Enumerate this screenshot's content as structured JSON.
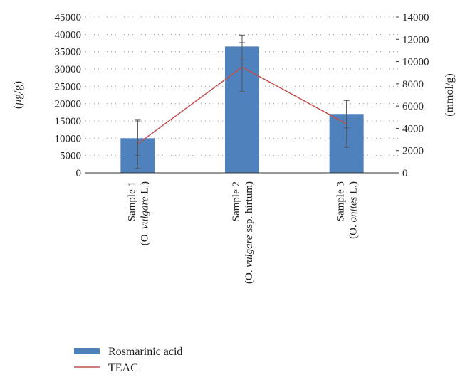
{
  "chart_data": {
    "type": "bar",
    "categories": [
      {
        "line1": "Sample 1",
        "line2_prefix": "(O. ",
        "line2_italic": "vulgare",
        "line2_suffix": " L.)"
      },
      {
        "line1": "Sample 2",
        "line2_prefix": "(O. ",
        "line2_italic": "vulgare",
        "line2_suffix": " ssp. hirtum)"
      },
      {
        "line1": "Sample 3",
        "line2_prefix": "(O. ",
        "line2_italic": "onites",
        "line2_suffix": " L.)"
      }
    ],
    "series": [
      {
        "name": "Rosmarinic acid",
        "type": "bar",
        "axis": "left",
        "values": [
          10000,
          36500,
          17000
        ],
        "errors": [
          5000,
          3300,
          4000
        ],
        "color": "#4f81bd"
      },
      {
        "name": "TEAC",
        "type": "line",
        "axis": "right",
        "values": [
          2600,
          9500,
          4400
        ],
        "errors": [
          2200,
          2200,
          2100
        ],
        "color": "#c0504d"
      }
    ],
    "ylabel_left_prefix": "(",
    "ylabel_left_italic": "μ",
    "ylabel_left_suffix": "g/g)",
    "ylabel_right": "(mmol/g)",
    "ylim_left": [
      0,
      45000
    ],
    "yticks_left": [
      "0",
      "5000",
      "10000",
      "15000",
      "20000",
      "25000",
      "30000",
      "35000",
      "40000",
      "45000"
    ],
    "ylim_right": [
      0,
      14000
    ],
    "yticks_right": [
      "0",
      "2000",
      "4000",
      "6000",
      "8000",
      "10000",
      "12000",
      "14000"
    ],
    "grid": "dotted horizontal",
    "legend_position": "bottom"
  }
}
